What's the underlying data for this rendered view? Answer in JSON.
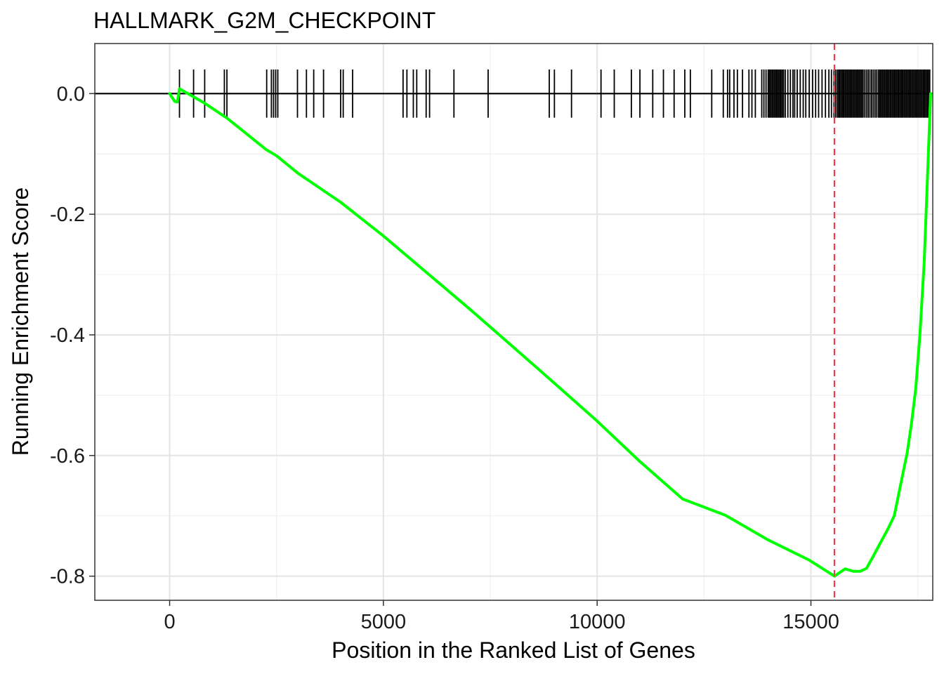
{
  "chart_data": {
    "type": "line",
    "title": "HALLMARK_G2M_CHECKPOINT",
    "xlabel": "Position in the Ranked List of Genes",
    "ylabel": "Running Enrichment Score",
    "xlim": [
      -1750,
      17850
    ],
    "ylim": [
      -0.84,
      0.083
    ],
    "x_ticks": [
      0,
      5000,
      10000,
      15000
    ],
    "x_tick_labels": [
      "0",
      "5000",
      "10000",
      "15000"
    ],
    "y_ticks": [
      0.0,
      -0.2,
      -0.4,
      -0.6,
      -0.8
    ],
    "y_tick_labels": [
      "0.0",
      "-0.2",
      "-0.4",
      "-0.6",
      "-0.8"
    ],
    "grid": true,
    "legend": "none",
    "colors": {
      "curve": "#00ff00",
      "hit_ticks": "#000000",
      "peak_line": "#ef3b4a",
      "zero_line": "#000000",
      "grid_major": "#e4e4e4",
      "grid_minor": "#f1f1f1"
    },
    "peak": {
      "x": 15550,
      "y": -0.8
    },
    "series": [
      {
        "x": [
          0,
          120,
          180,
          230,
          550,
          800,
          1240,
          1330,
          2260,
          2500,
          3000,
          4000,
          5000,
          6000,
          7000,
          8000,
          9000,
          10000,
          11000,
          12000,
          13000,
          14000,
          14950,
          15550,
          15800,
          16000,
          16150,
          16300,
          16450,
          16600,
          16800,
          16950,
          17100,
          17250,
          17350,
          17450,
          17550,
          17650,
          17720,
          17780,
          17800
        ],
        "y": [
          0.0,
          -0.013,
          -0.014,
          0.008,
          -0.005,
          -0.015,
          -0.036,
          -0.04,
          -0.093,
          -0.103,
          -0.132,
          -0.18,
          -0.236,
          -0.296,
          -0.356,
          -0.418,
          -0.48,
          -0.543,
          -0.61,
          -0.672,
          -0.699,
          -0.74,
          -0.773,
          -0.8,
          -0.788,
          -0.792,
          -0.792,
          -0.787,
          -0.768,
          -0.748,
          -0.722,
          -0.7,
          -0.648,
          -0.596,
          -0.548,
          -0.49,
          -0.4,
          -0.28,
          -0.15,
          -0.04,
          0.0
        ]
      }
    ],
    "hit_positions": [
      230,
      560,
      820,
      1280,
      1340,
      2270,
      2380,
      2430,
      2480,
      2530,
      2990,
      3200,
      3370,
      3600,
      4000,
      4060,
      4280,
      5460,
      5550,
      5700,
      5780,
      6000,
      6080,
      6650,
      7450,
      8880,
      9000,
      9400,
      10090,
      10400,
      10800,
      11000,
      11300,
      11550,
      11800,
      12050,
      12180,
      12680,
      12950,
      13050,
      13100,
      13200,
      13280,
      13400,
      13550,
      13620,
      13700,
      13850,
      13900,
      13950,
      14000,
      14030,
      14060,
      14090,
      14120,
      14150,
      14180,
      14210,
      14240,
      14270,
      14300,
      14330,
      14360,
      14400,
      14460,
      14520,
      14580,
      14620,
      14680,
      14750,
      14820,
      14880,
      14960,
      15040,
      15110,
      15180,
      15260,
      15340,
      15420,
      15480,
      15540,
      15580,
      15620,
      15650,
      15680,
      15710,
      15740,
      15770,
      15800,
      15830,
      15860,
      15890,
      15920,
      15950,
      15980,
      16010,
      16040,
      16070,
      16100,
      16130,
      16160,
      16190,
      16220,
      16260,
      16300,
      16340,
      16380,
      16420,
      16460,
      16500,
      16540,
      16580,
      16610,
      16640,
      16670,
      16700,
      16730,
      16760,
      16790,
      16820,
      16850,
      16880,
      16910,
      16940,
      16970,
      17000,
      17030,
      17060,
      17090,
      17120,
      17150,
      17180,
      17210,
      17240,
      17270,
      17300,
      17330,
      17360,
      17390,
      17420,
      17450,
      17480,
      17510,
      17540,
      17570,
      17600,
      17630,
      17660,
      17690,
      17720,
      17750,
      17780
    ]
  }
}
